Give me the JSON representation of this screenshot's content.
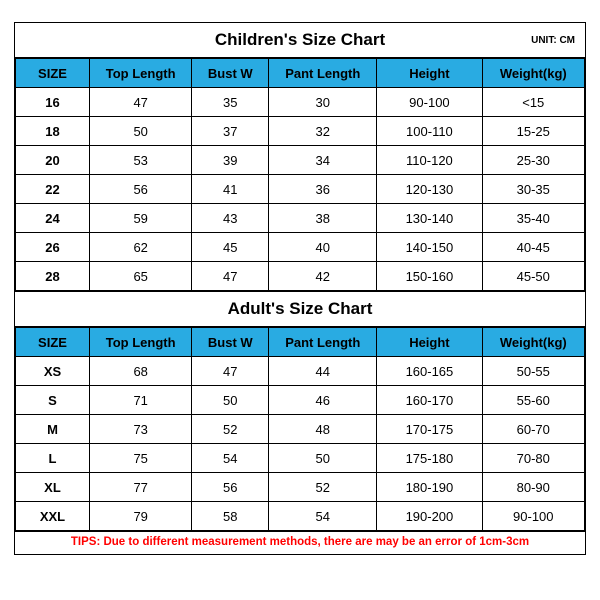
{
  "colors": {
    "header_bg": "#29abe2",
    "border": "#000000",
    "tips": "#ff0000",
    "background": "#ffffff"
  },
  "children": {
    "title": "Children's Size Chart",
    "unit": "UNIT: CM",
    "columns": [
      "SIZE",
      "Top Length",
      "Bust W",
      "Pant Length",
      "Height",
      "Weight(kg)"
    ],
    "rows": [
      [
        "16",
        "47",
        "35",
        "30",
        "90-100",
        "<15"
      ],
      [
        "18",
        "50",
        "37",
        "32",
        "100-110",
        "15-25"
      ],
      [
        "20",
        "53",
        "39",
        "34",
        "110-120",
        "25-30"
      ],
      [
        "22",
        "56",
        "41",
        "36",
        "120-130",
        "30-35"
      ],
      [
        "24",
        "59",
        "43",
        "38",
        "130-140",
        "35-40"
      ],
      [
        "26",
        "62",
        "45",
        "40",
        "140-150",
        "40-45"
      ],
      [
        "28",
        "65",
        "47",
        "42",
        "150-160",
        "45-50"
      ]
    ]
  },
  "adult": {
    "title": "Adult's Size Chart",
    "columns": [
      "SIZE",
      "Top Length",
      "Bust W",
      "Pant Length",
      "Height",
      "Weight(kg)"
    ],
    "rows": [
      [
        "XS",
        "68",
        "47",
        "44",
        "160-165",
        "50-55"
      ],
      [
        "S",
        "71",
        "50",
        "46",
        "160-170",
        "55-60"
      ],
      [
        "M",
        "73",
        "52",
        "48",
        "170-175",
        "60-70"
      ],
      [
        "L",
        "75",
        "54",
        "50",
        "175-180",
        "70-80"
      ],
      [
        "XL",
        "77",
        "56",
        "52",
        "180-190",
        "80-90"
      ],
      [
        "XXL",
        "79",
        "58",
        "54",
        "190-200",
        "90-100"
      ]
    ]
  },
  "tips": "TIPS: Due to different measurement methods, there are may be an error of 1cm-3cm"
}
